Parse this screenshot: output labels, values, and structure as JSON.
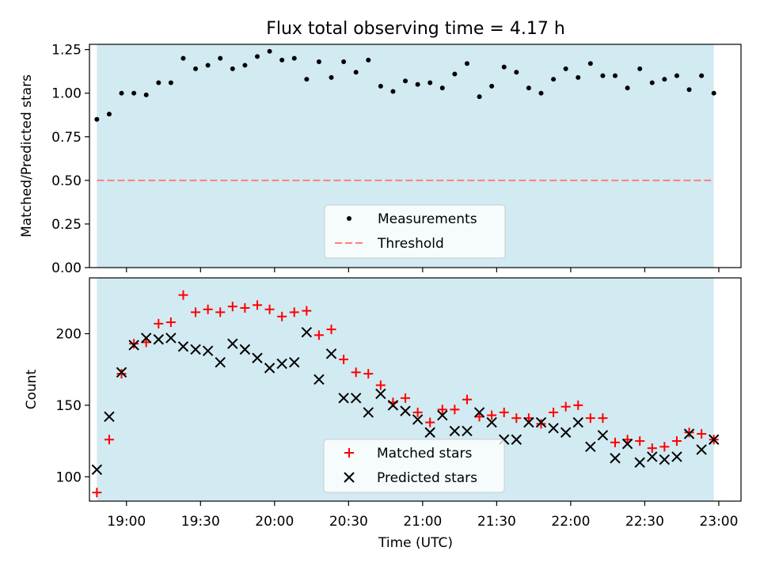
{
  "title": "Flux total observing time = 4.17 h",
  "chart_data": [
    {
      "type": "scatter",
      "ylabel": "Matched/Predicted stars",
      "xlabel": "",
      "ylim": [
        0,
        1.28
      ],
      "yticks": [
        "0.00",
        "0.25",
        "0.50",
        "0.75",
        "1.00",
        "1.25"
      ],
      "shaded_region": {
        "x_start": "18:48",
        "x_end": "22:58",
        "color": "#add8e6"
      },
      "legend_location": "lower center",
      "series": [
        {
          "name": "Measurements",
          "marker": "dot",
          "color": "#000000",
          "x": [
            "18:48",
            "18:53",
            "18:58",
            "19:03",
            "19:08",
            "19:13",
            "19:18",
            "19:23",
            "19:28",
            "19:33",
            "19:38",
            "19:43",
            "19:48",
            "19:53",
            "19:58",
            "20:03",
            "20:08",
            "20:13",
            "20:18",
            "20:23",
            "20:28",
            "20:33",
            "20:38",
            "20:43",
            "20:48",
            "20:53",
            "20:58",
            "21:03",
            "21:08",
            "21:13",
            "21:18",
            "21:23",
            "21:28",
            "21:33",
            "21:38",
            "21:43",
            "21:48",
            "21:53",
            "21:58",
            "22:03",
            "22:08",
            "22:13",
            "22:18",
            "22:23",
            "22:28",
            "22:33",
            "22:38",
            "22:43",
            "22:48",
            "22:53",
            "22:58"
          ],
          "y": [
            0.85,
            0.88,
            1.0,
            1.0,
            0.99,
            1.06,
            1.06,
            1.2,
            1.14,
            1.16,
            1.2,
            1.14,
            1.16,
            1.21,
            1.24,
            1.19,
            1.2,
            1.08,
            1.18,
            1.09,
            1.18,
            1.12,
            1.19,
            1.04,
            1.01,
            1.07,
            1.05,
            1.06,
            1.03,
            1.11,
            1.17,
            0.98,
            1.04,
            1.15,
            1.12,
            1.03,
            1.0,
            1.08,
            1.14,
            1.09,
            1.17,
            1.1,
            1.1,
            1.03,
            1.14,
            1.06,
            1.08,
            1.1,
            1.02,
            1.1,
            1.0
          ]
        },
        {
          "name": "Threshold",
          "style": "dashed-line",
          "color": "#ff7f7f",
          "y": 0.5
        }
      ]
    },
    {
      "type": "scatter",
      "ylabel": "Count",
      "xlabel": "Time (UTC)",
      "ylim": [
        83,
        239
      ],
      "yticks": [
        "100",
        "150",
        "200"
      ],
      "xticks": [
        "19:00",
        "19:30",
        "20:00",
        "20:30",
        "21:00",
        "21:30",
        "22:00",
        "22:30",
        "23:00"
      ],
      "shaded_region": {
        "x_start": "18:48",
        "x_end": "22:58",
        "color": "#add8e6"
      },
      "legend_location": "lower center",
      "series": [
        {
          "name": "Matched stars",
          "marker": "plus",
          "color": "#ff0000",
          "x": [
            "18:48",
            "18:53",
            "18:58",
            "19:03",
            "19:08",
            "19:13",
            "19:18",
            "19:23",
            "19:28",
            "19:33",
            "19:38",
            "19:43",
            "19:48",
            "19:53",
            "19:58",
            "20:03",
            "20:08",
            "20:13",
            "20:18",
            "20:23",
            "20:28",
            "20:33",
            "20:38",
            "20:43",
            "20:48",
            "20:53",
            "20:58",
            "21:03",
            "21:08",
            "21:13",
            "21:18",
            "21:23",
            "21:28",
            "21:33",
            "21:38",
            "21:43",
            "21:48",
            "21:53",
            "21:58",
            "22:03",
            "22:08",
            "22:13",
            "22:18",
            "22:23",
            "22:28",
            "22:33",
            "22:38",
            "22:43",
            "22:48",
            "22:53",
            "22:58"
          ],
          "y": [
            89,
            126,
            172,
            193,
            194,
            207,
            208,
            227,
            215,
            217,
            215,
            219,
            218,
            220,
            217,
            212,
            215,
            216,
            199,
            203,
            182,
            173,
            172,
            164,
            152,
            155,
            145,
            138,
            147,
            147,
            154,
            142,
            143,
            145,
            141,
            141,
            137,
            145,
            149,
            150,
            141,
            141,
            124,
            126,
            125,
            120,
            121,
            125,
            131,
            130,
            126
          ]
        },
        {
          "name": "Predicted stars",
          "marker": "x",
          "color": "#000000",
          "x": [
            "18:48",
            "18:53",
            "18:58",
            "19:03",
            "19:08",
            "19:13",
            "19:18",
            "19:23",
            "19:28",
            "19:33",
            "19:38",
            "19:43",
            "19:48",
            "19:53",
            "19:58",
            "20:03",
            "20:08",
            "20:13",
            "20:18",
            "20:23",
            "20:28",
            "20:33",
            "20:38",
            "20:43",
            "20:48",
            "20:53",
            "20:58",
            "21:03",
            "21:08",
            "21:13",
            "21:18",
            "21:23",
            "21:28",
            "21:33",
            "21:38",
            "21:43",
            "21:48",
            "21:53",
            "21:58",
            "22:03",
            "22:08",
            "22:13",
            "22:18",
            "22:23",
            "22:28",
            "22:33",
            "22:38",
            "22:43",
            "22:48",
            "22:53",
            "22:58"
          ],
          "y": [
            105,
            142,
            173,
            192,
            197,
            196,
            197,
            191,
            189,
            188,
            180,
            193,
            189,
            183,
            176,
            179,
            180,
            201,
            168,
            186,
            155,
            155,
            145,
            158,
            150,
            146,
            140,
            131,
            143,
            132,
            132,
            145,
            138,
            126,
            126,
            138,
            138,
            134,
            131,
            138,
            121,
            129,
            113,
            123,
            110,
            114,
            112,
            114,
            130,
            119,
            126
          ]
        }
      ]
    }
  ]
}
